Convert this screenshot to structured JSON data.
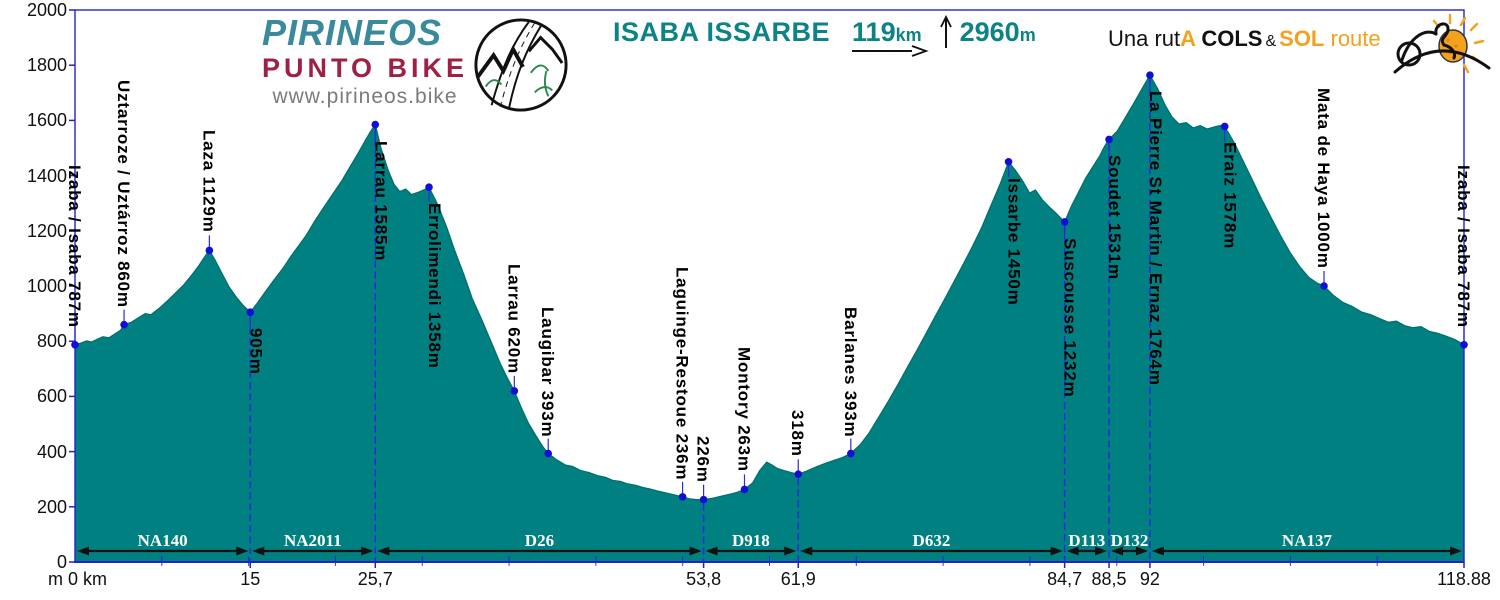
{
  "brand": {
    "name": "PIRINEOS",
    "sub": "PUNTO BIKE",
    "url": "www.pirineos.bike"
  },
  "title": {
    "route": "ISABA ISSARBE",
    "distance": "119",
    "distance_unit": "km",
    "gain": "2960",
    "gain_unit": "m"
  },
  "tagline": {
    "p1": "Una rut",
    "p2": "A",
    "p3": " COLS",
    "amp": "&",
    "p4": "SOL",
    "p5": " route"
  },
  "icons": {
    "brand_logo": "mountain-road-circle",
    "distance": "right-arrow",
    "elevation_gain": "up-arrow",
    "tagline": "cyclist-with-sun"
  },
  "colors": {
    "area_fill": "#008080",
    "area_edge": "#006e6e",
    "axis_blue": "#2222cc",
    "marker_blue": "#0f0fd6",
    "dashed_blue": "#2a2ae0",
    "title_teal": "#0c8388",
    "brand_teal": "#3a8a9c",
    "brand_maroon": "#9e2143",
    "accent_orange": "#f4a11e",
    "url_gray": "#7b7b7b",
    "road_label_white": "#ffffff",
    "text_black": "#111111"
  },
  "chart_data": {
    "type": "area",
    "title": "ISABA ISSARBE",
    "xlabel": "km",
    "ylabel": "m",
    "x_max": 118.88,
    "y_max": 2000,
    "y_ticks": [
      0,
      200,
      400,
      600,
      800,
      1000,
      1200,
      1400,
      1600,
      1800,
      2000
    ],
    "x_origin_label": "m 0 km",
    "x_ticks": [
      {
        "label": "15",
        "km": 15
      },
      {
        "label": "25,7",
        "km": 25.7
      },
      {
        "label": "53,8",
        "km": 53.8
      },
      {
        "label": "61,9",
        "km": 61.9
      },
      {
        "label": "84,7",
        "km": 84.7
      },
      {
        "label": "88,5",
        "km": 88.5
      },
      {
        "label": "92",
        "km": 92
      },
      {
        "label": "118.88",
        "km": 118.88
      }
    ],
    "minor_x_divisions": 16,
    "waypoints": [
      {
        "name": "Izaba / Isaba 787m",
        "km": 0,
        "elev": 787,
        "label_side": "above",
        "dashed": false
      },
      {
        "name": "Uztarroze / Uztárroz 860m",
        "km": 4.2,
        "elev": 860,
        "label_side": "above",
        "dashed": false
      },
      {
        "name": "Laza 1129m",
        "km": 11.5,
        "elev": 1129,
        "label_side": "above",
        "dashed": false
      },
      {
        "name": "905m",
        "km": 15,
        "elev": 905,
        "label_side": "below",
        "dashed": true
      },
      {
        "name": "Larrau 1585m",
        "km": 25.7,
        "elev": 1585,
        "label_side": "below",
        "dashed": true
      },
      {
        "name": "Errolimendi 1358m",
        "km": 30.3,
        "elev": 1358,
        "label_side": "below",
        "dashed": false
      },
      {
        "name": "Larrau 620m",
        "km": 37.6,
        "elev": 620,
        "label_side": "above",
        "dashed": false
      },
      {
        "name": "Laugibar 393m",
        "km": 40.5,
        "elev": 393,
        "label_side": "above",
        "dashed": false
      },
      {
        "name": "Laguinge-Restoue 236m",
        "km": 52,
        "elev": 236,
        "label_side": "above",
        "dashed": false
      },
      {
        "name": "226m",
        "km": 53.8,
        "elev": 226,
        "label_side": "above",
        "dashed": true
      },
      {
        "name": "Montory 263m",
        "km": 57.3,
        "elev": 263,
        "label_side": "above",
        "dashed": false
      },
      {
        "name": "318m",
        "km": 61.9,
        "elev": 318,
        "label_side": "above",
        "dashed": true
      },
      {
        "name": "Barlanes 393m",
        "km": 66.4,
        "elev": 393,
        "label_side": "above",
        "dashed": false
      },
      {
        "name": "Issarbe 1450m",
        "km": 79.9,
        "elev": 1450,
        "label_side": "below",
        "dashed": false
      },
      {
        "name": "Suscousse 1232m",
        "km": 84.7,
        "elev": 1232,
        "label_side": "below",
        "dashed": true
      },
      {
        "name": "Soudet 1531m",
        "km": 88.5,
        "elev": 1531,
        "label_side": "below",
        "dashed": true
      },
      {
        "name": "La Pierre St Martin / Ernaz 1764m",
        "km": 92,
        "elev": 1764,
        "label_side": "below",
        "dashed": true
      },
      {
        "name": "Eraiz 1578m",
        "km": 98.4,
        "elev": 1578,
        "label_side": "below",
        "dashed": false
      },
      {
        "name": "Mata de Haya 1000m",
        "km": 106.9,
        "elev": 1000,
        "label_side": "above",
        "dashed": false
      },
      {
        "name": "Izaba / Isaba 787m",
        "km": 118.88,
        "elev": 787,
        "label_side": "above",
        "dashed": false
      }
    ],
    "road_segments": [
      {
        "name": "NA140",
        "from": 0,
        "to": 15
      },
      {
        "name": "NA2011",
        "from": 15,
        "to": 25.7
      },
      {
        "name": "D26",
        "from": 25.7,
        "to": 53.8
      },
      {
        "name": "D918",
        "from": 53.8,
        "to": 61.9
      },
      {
        "name": "D632",
        "from": 61.9,
        "to": 84.7
      },
      {
        "name": "D113",
        "from": 84.7,
        "to": 88.5
      },
      {
        "name": "D132",
        "from": 88.5,
        "to": 92
      },
      {
        "name": "NA137",
        "from": 92,
        "to": 118.88
      }
    ],
    "profile": [
      [
        0,
        787
      ],
      [
        0.5,
        793
      ],
      [
        1,
        801
      ],
      [
        1.4,
        797
      ],
      [
        1.9,
        807
      ],
      [
        2.4,
        816
      ],
      [
        2.9,
        812
      ],
      [
        3.4,
        826
      ],
      [
        3.9,
        840
      ],
      [
        4.2,
        860
      ],
      [
        4.8,
        868
      ],
      [
        5.4,
        884
      ],
      [
        6,
        900
      ],
      [
        6.5,
        896
      ],
      [
        7.2,
        919
      ],
      [
        8,
        950
      ],
      [
        8.7,
        979
      ],
      [
        9.3,
        1004
      ],
      [
        10,
        1040
      ],
      [
        10.6,
        1074
      ],
      [
        11.1,
        1106
      ],
      [
        11.5,
        1129
      ],
      [
        12,
        1093
      ],
      [
        12.6,
        1044
      ],
      [
        13.2,
        996
      ],
      [
        13.8,
        960
      ],
      [
        14.4,
        929
      ],
      [
        15,
        905
      ],
      [
        15.6,
        938
      ],
      [
        16.2,
        974
      ],
      [
        17,
        1020
      ],
      [
        17.8,
        1064
      ],
      [
        18.5,
        1109
      ],
      [
        19.2,
        1149
      ],
      [
        19.8,
        1184
      ],
      [
        20.5,
        1234
      ],
      [
        21.2,
        1279
      ],
      [
        22,
        1329
      ],
      [
        22.8,
        1379
      ],
      [
        23.5,
        1429
      ],
      [
        24.2,
        1479
      ],
      [
        24.9,
        1531
      ],
      [
        25.3,
        1560
      ],
      [
        25.7,
        1585
      ],
      [
        26.2,
        1498
      ],
      [
        26.8,
        1420
      ],
      [
        27.3,
        1369
      ],
      [
        27.8,
        1342
      ],
      [
        28.3,
        1351
      ],
      [
        28.8,
        1331
      ],
      [
        29.4,
        1340
      ],
      [
        29.9,
        1349
      ],
      [
        30.3,
        1358
      ],
      [
        31,
        1299
      ],
      [
        31.8,
        1214
      ],
      [
        32.5,
        1129
      ],
      [
        33.3,
        1039
      ],
      [
        34,
        954
      ],
      [
        34.8,
        879
      ],
      [
        35.6,
        799
      ],
      [
        36.4,
        719
      ],
      [
        37,
        667
      ],
      [
        37.6,
        620
      ],
      [
        38.2,
        559
      ],
      [
        38.8,
        504
      ],
      [
        39.4,
        461
      ],
      [
        40,
        420
      ],
      [
        40.5,
        393
      ],
      [
        41.2,
        371
      ],
      [
        42,
        351
      ],
      [
        42.6,
        346
      ],
      [
        43.3,
        331
      ],
      [
        44,
        324
      ],
      [
        44.7,
        313
      ],
      [
        45.4,
        307
      ],
      [
        46,
        296
      ],
      [
        46.7,
        292
      ],
      [
        47.3,
        283
      ],
      [
        48,
        278
      ],
      [
        48.6,
        270
      ],
      [
        49.2,
        265
      ],
      [
        49.8,
        258
      ],
      [
        50.4,
        252
      ],
      [
        51,
        246
      ],
      [
        51.5,
        241
      ],
      [
        52,
        236
      ],
      [
        52.6,
        229
      ],
      [
        53.2,
        226
      ],
      [
        53.8,
        226
      ],
      [
        54.6,
        231
      ],
      [
        55.4,
        239
      ],
      [
        56.1,
        246
      ],
      [
        56.7,
        253
      ],
      [
        57.3,
        263
      ],
      [
        58,
        287
      ],
      [
        58.6,
        331
      ],
      [
        59.2,
        362
      ],
      [
        59.6,
        353
      ],
      [
        60.1,
        339
      ],
      [
        60.7,
        331
      ],
      [
        61.3,
        324
      ],
      [
        61.9,
        318
      ],
      [
        62.6,
        329
      ],
      [
        63.4,
        344
      ],
      [
        64.2,
        357
      ],
      [
        65,
        369
      ],
      [
        65.7,
        379
      ],
      [
        66.4,
        393
      ],
      [
        67.2,
        425
      ],
      [
        68,
        470
      ],
      [
        68.8,
        526
      ],
      [
        69.6,
        582
      ],
      [
        70.4,
        641
      ],
      [
        71.2,
        702
      ],
      [
        72,
        763
      ],
      [
        72.8,
        825
      ],
      [
        73.6,
        888
      ],
      [
        74.4,
        950
      ],
      [
        75.2,
        1013
      ],
      [
        76,
        1077
      ],
      [
        76.8,
        1142
      ],
      [
        77.6,
        1212
      ],
      [
        78.4,
        1292
      ],
      [
        79.2,
        1372
      ],
      [
        79.9,
        1450
      ],
      [
        80.5,
        1418
      ],
      [
        81.1,
        1381
      ],
      [
        81.7,
        1337
      ],
      [
        82.2,
        1348
      ],
      [
        82.8,
        1312
      ],
      [
        83.4,
        1286
      ],
      [
        84,
        1262
      ],
      [
        84.7,
        1232
      ],
      [
        85.3,
        1291
      ],
      [
        85.9,
        1341
      ],
      [
        86.5,
        1391
      ],
      [
        87.1,
        1431
      ],
      [
        87.7,
        1471
      ],
      [
        88.1,
        1505
      ],
      [
        88.5,
        1531
      ],
      [
        89.2,
        1561
      ],
      [
        89.9,
        1611
      ],
      [
        90.6,
        1661
      ],
      [
        91.3,
        1713
      ],
      [
        92,
        1764
      ],
      [
        92.7,
        1712
      ],
      [
        93.3,
        1655
      ],
      [
        93.9,
        1612
      ],
      [
        94.5,
        1587
      ],
      [
        95.1,
        1592
      ],
      [
        95.7,
        1573
      ],
      [
        96.3,
        1581
      ],
      [
        96.9,
        1569
      ],
      [
        97.5,
        1576
      ],
      [
        98,
        1581
      ],
      [
        98.4,
        1578
      ],
      [
        99.2,
        1520
      ],
      [
        100,
        1451
      ],
      [
        100.8,
        1381
      ],
      [
        101.6,
        1311
      ],
      [
        102.4,
        1246
      ],
      [
        103.2,
        1181
      ],
      [
        104,
        1121
      ],
      [
        104.8,
        1071
      ],
      [
        105.6,
        1031
      ],
      [
        106.3,
        1011
      ],
      [
        106.9,
        1000
      ],
      [
        107.7,
        966
      ],
      [
        108.5,
        941
      ],
      [
        109.3,
        926
      ],
      [
        110.1,
        906
      ],
      [
        110.9,
        896
      ],
      [
        111.7,
        881
      ],
      [
        112.4,
        869
      ],
      [
        113.1,
        873
      ],
      [
        113.8,
        856
      ],
      [
        114.5,
        849
      ],
      [
        115.2,
        853
      ],
      [
        115.9,
        836
      ],
      [
        116.6,
        829
      ],
      [
        117.3,
        819
      ],
      [
        118.1,
        806
      ],
      [
        118.88,
        787
      ]
    ]
  }
}
